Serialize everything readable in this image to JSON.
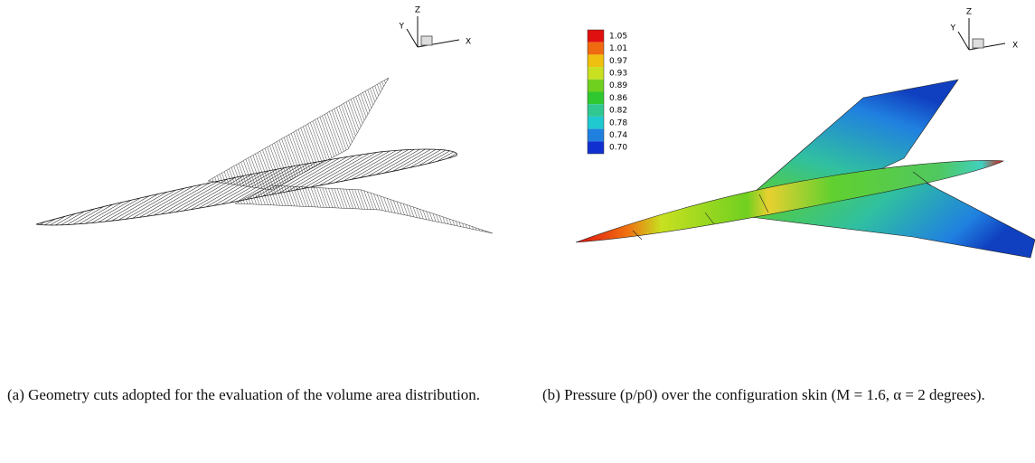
{
  "figure_a": {
    "axes": {
      "z": "Z",
      "y": "Y",
      "x": "X"
    },
    "caption": "(a) Geometry cuts adopted for the evaluation of the volume area distribution."
  },
  "figure_b": {
    "axes": {
      "z": "Z",
      "y": "Y",
      "x": "X"
    },
    "legend": [
      "1.05",
      "1.01",
      "0.97",
      "0.93",
      "0.89",
      "0.86",
      "0.82",
      "0.78",
      "0.74",
      "0.70"
    ],
    "caption": "(b) Pressure (p/p0) over the configuration skin (M = 1.6, α = 2 degrees)."
  }
}
